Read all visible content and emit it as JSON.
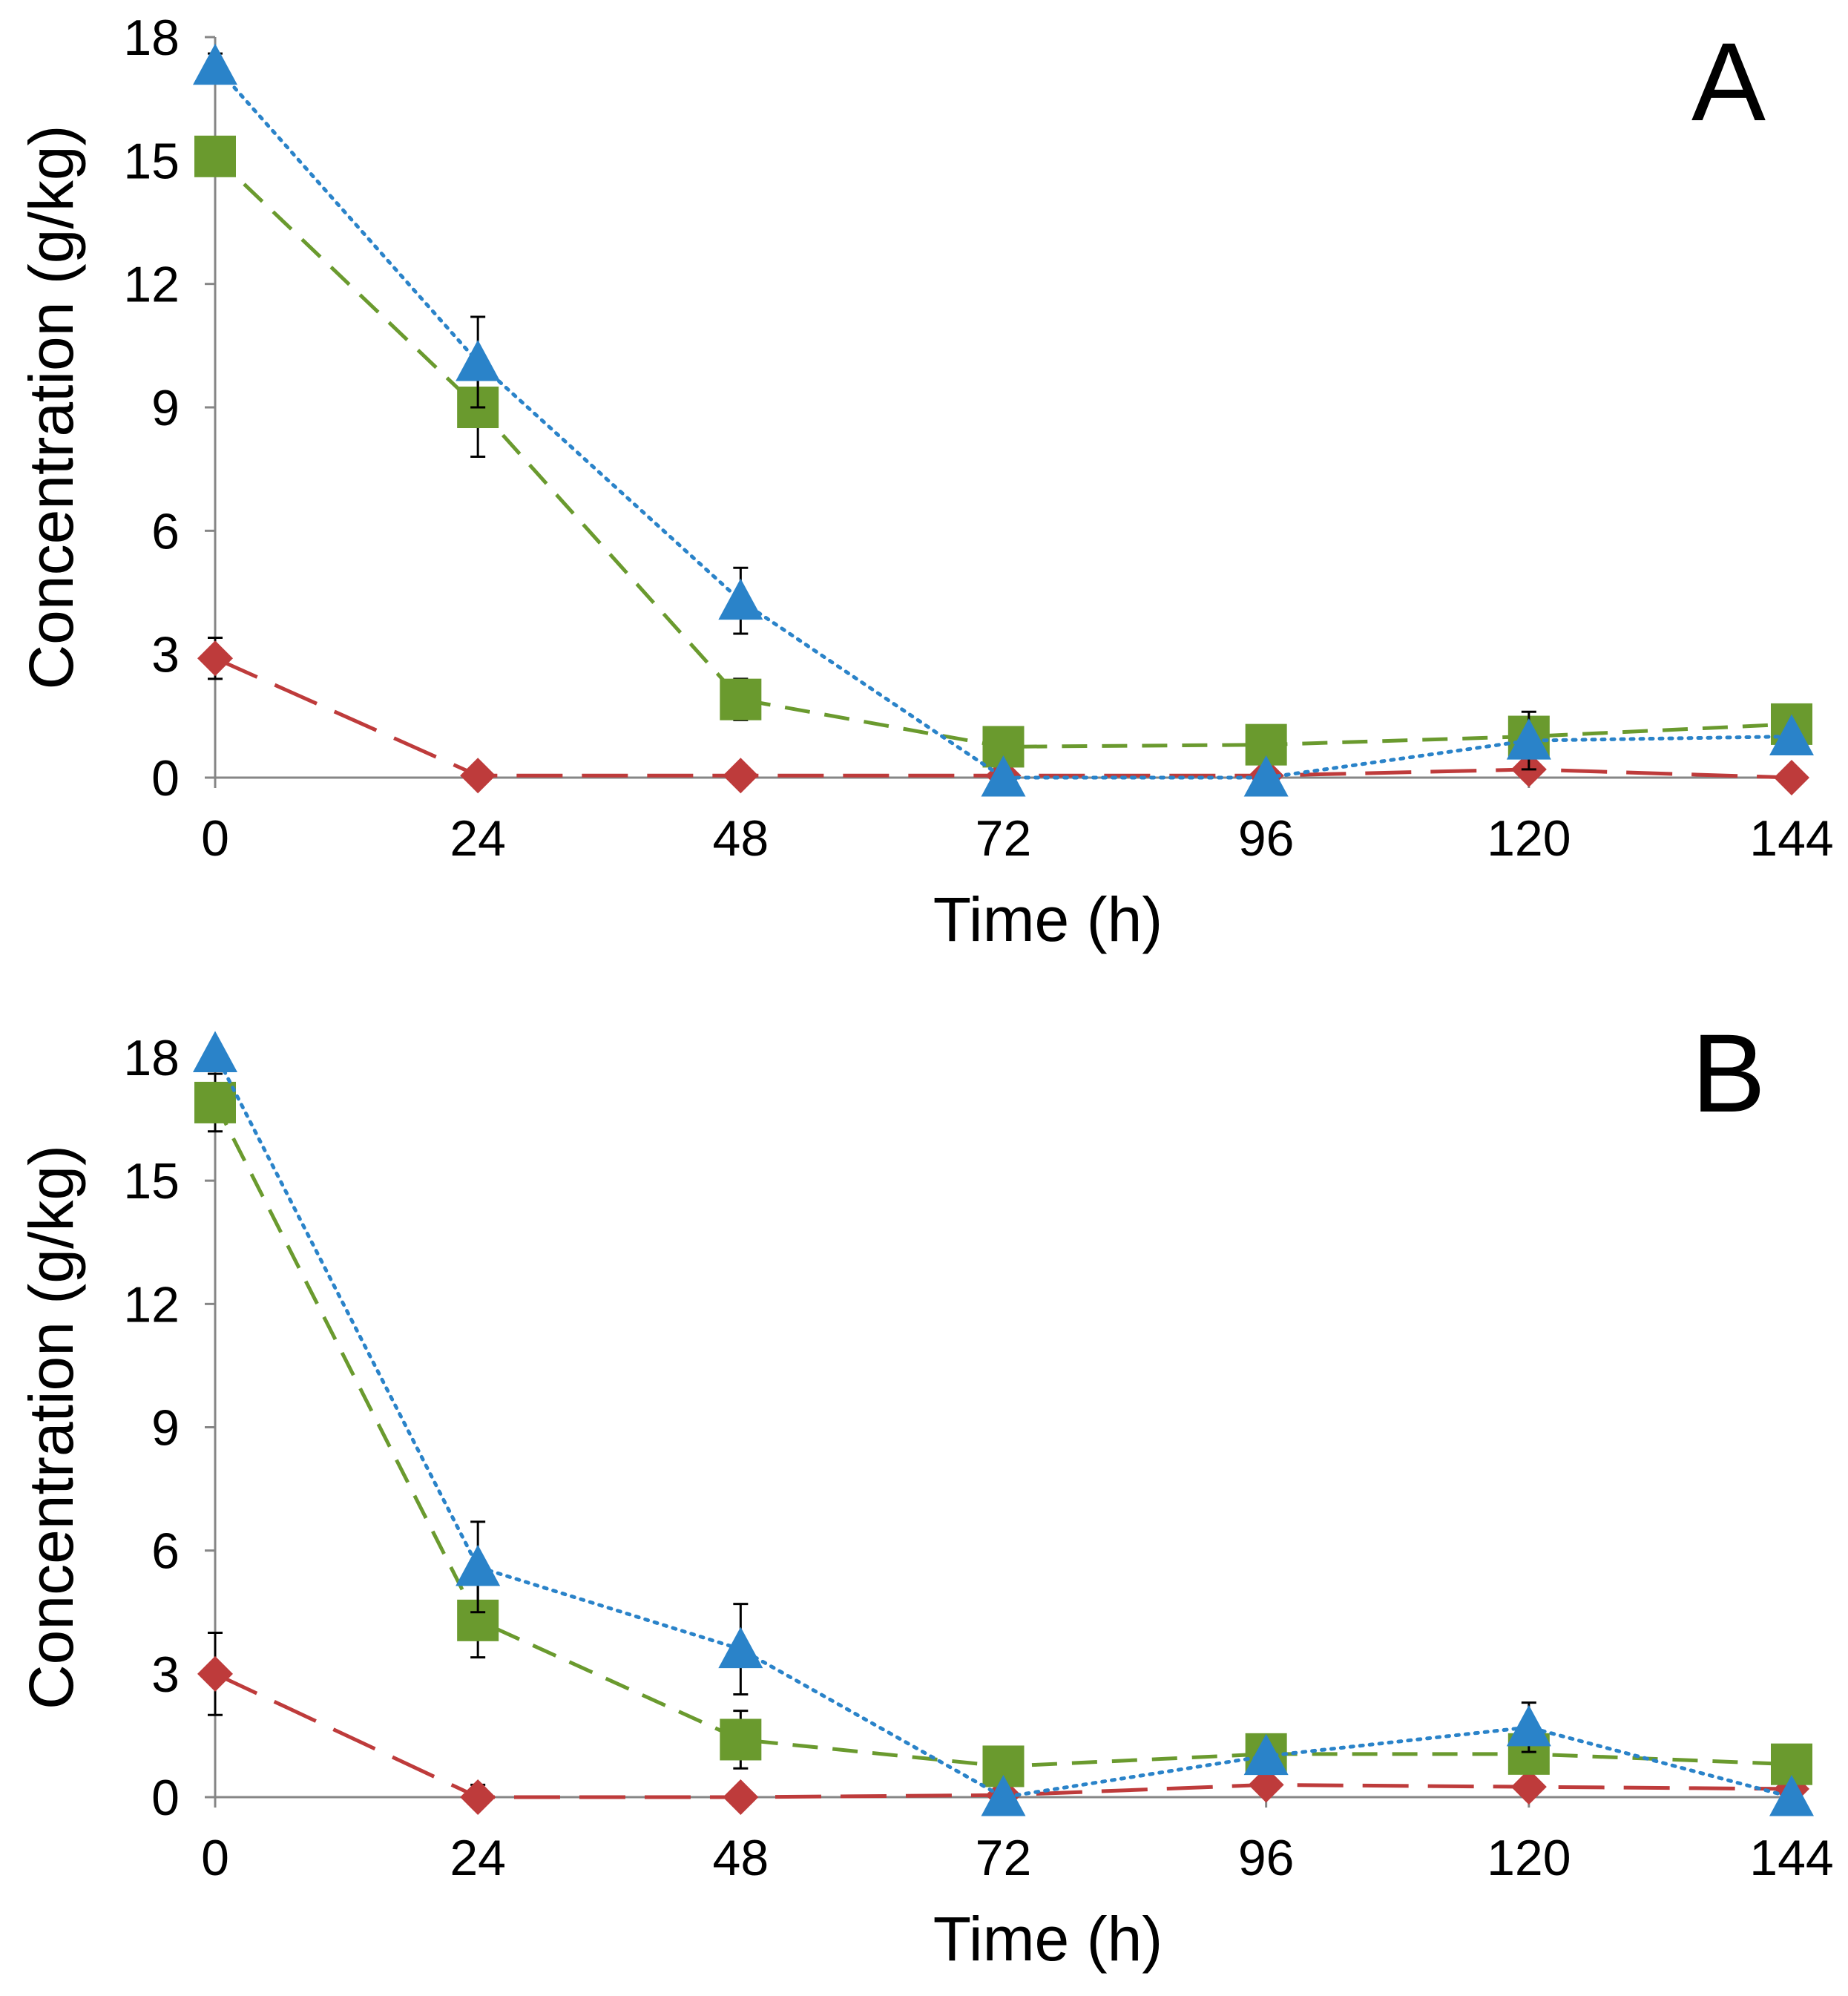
{
  "chart_data": [
    {
      "type": "line",
      "panel_label": "A",
      "xlabel": "Time (h)",
      "ylabel": "Concentration (g/kg)",
      "xlim": [
        0,
        144
      ],
      "ylim": [
        0,
        18
      ],
      "x_ticks": [
        0,
        24,
        48,
        72,
        96,
        120,
        144
      ],
      "y_ticks": [
        0,
        3,
        6,
        9,
        12,
        15,
        18
      ],
      "grid": false,
      "legend": "none",
      "series": [
        {
          "color": "#be3b3b",
          "marker": "diamond",
          "dash": "long-dash",
          "x": [
            0,
            24,
            48,
            72,
            96,
            120,
            144
          ],
          "values": [
            2.9,
            0.05,
            0.05,
            0.05,
            0.05,
            0.2,
            0.0
          ],
          "error": [
            0.5,
            0,
            0,
            0,
            0,
            0,
            0
          ]
        },
        {
          "color": "#6a9a2e",
          "marker": "square",
          "dash": "dash",
          "x": [
            0,
            24,
            48,
            72,
            96,
            120,
            144
          ],
          "values": [
            15.1,
            9.0,
            1.9,
            0.75,
            0.8,
            1.0,
            1.3
          ],
          "error": [
            0,
            1.2,
            0.5,
            0,
            0.4,
            0,
            0
          ]
        },
        {
          "color": "#2a83c9",
          "marker": "triangle",
          "dash": "dot",
          "x": [
            0,
            24,
            48,
            72,
            96,
            120,
            144
          ],
          "values": [
            17.3,
            10.1,
            4.3,
            0.0,
            0.0,
            0.9,
            1.0
          ],
          "error": [
            0.3,
            1.1,
            0.8,
            0,
            0,
            0.7,
            0
          ]
        }
      ]
    },
    {
      "type": "line",
      "panel_label": "B",
      "xlabel": "Time (h)",
      "ylabel": "Concentration (g/kg)",
      "xlim": [
        0,
        144
      ],
      "ylim": [
        0,
        18
      ],
      "x_ticks": [
        0,
        24,
        48,
        72,
        96,
        120,
        144
      ],
      "y_ticks": [
        0,
        3,
        6,
        9,
        12,
        15,
        18
      ],
      "grid": false,
      "legend": "none",
      "series": [
        {
          "color": "#be3b3b",
          "marker": "diamond",
          "dash": "long-dash",
          "x": [
            0,
            24,
            48,
            72,
            96,
            120,
            144
          ],
          "values": [
            3.0,
            0.0,
            0.0,
            0.05,
            0.3,
            0.25,
            0.2
          ],
          "error": [
            1.0,
            0.3,
            0,
            0,
            0,
            0,
            0
          ]
        },
        {
          "color": "#6a9a2e",
          "marker": "square",
          "dash": "dash",
          "x": [
            0,
            24,
            48,
            72,
            96,
            120,
            144
          ],
          "values": [
            16.9,
            4.3,
            1.4,
            0.75,
            1.05,
            1.05,
            0.8
          ],
          "error": [
            0.7,
            0.9,
            0.7,
            0,
            0,
            0,
            0
          ]
        },
        {
          "color": "#2a83c9",
          "marker": "triangle",
          "dash": "dot",
          "x": [
            0,
            24,
            48,
            72,
            96,
            120,
            144
          ],
          "values": [
            18.1,
            5.6,
            3.6,
            0.0,
            1.0,
            1.7,
            0.0
          ],
          "error": [
            0,
            1.1,
            1.1,
            0,
            0,
            0.6,
            0
          ]
        }
      ]
    }
  ]
}
